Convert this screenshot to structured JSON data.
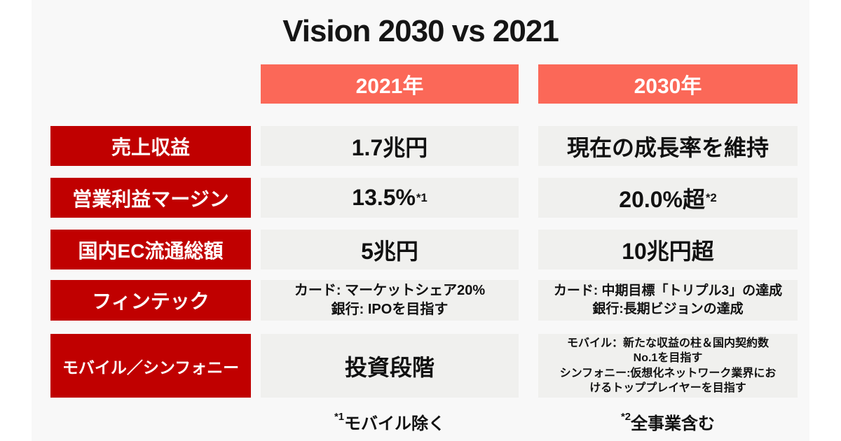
{
  "title": "Vision 2030 vs 2021",
  "columns": [
    {
      "label": "2021年"
    },
    {
      "label": "2030年"
    }
  ],
  "rows": [
    {
      "label": "売上収益",
      "y2021": "1.7兆円",
      "y2030": "現在の成長率を維持"
    },
    {
      "label": "営業利益マージン",
      "y2021": "13.5%",
      "y2021_sup": "*1",
      "y2030": "20.0%超",
      "y2030_sup": "*2"
    },
    {
      "label": "国内EC流通総額",
      "y2021": "5兆円",
      "y2030": "10兆円超"
    },
    {
      "label": "フィンテック",
      "y2021": "カード: マーケットシェア20%\n銀行: IPOを目指す",
      "y2030": "カード: 中期目標「トリプル3」の達成\n銀行:長期ビジョンの達成"
    },
    {
      "label": "モバイル／シンフォニー",
      "y2021": "投資段階",
      "y2030": "モバイル：新たな収益の柱＆国内契約数\nNo.1を目指す\nシンフォニー:仮想化ネットワーク業界にお\nけるトッププレイヤーを目指す"
    }
  ],
  "footnotes": [
    {
      "sup": "*1",
      "text": "モバイル除く"
    },
    {
      "sup": "*2",
      "text": "全事業含む"
    }
  ],
  "colors": {
    "canvas_bg": "#F8F8F8",
    "column_header_bg": "#FB6858",
    "row_label_bg": "#C00000",
    "cell_bg": "#F0F0EE",
    "text": "#111111",
    "header_text": "#FFFFFF"
  }
}
